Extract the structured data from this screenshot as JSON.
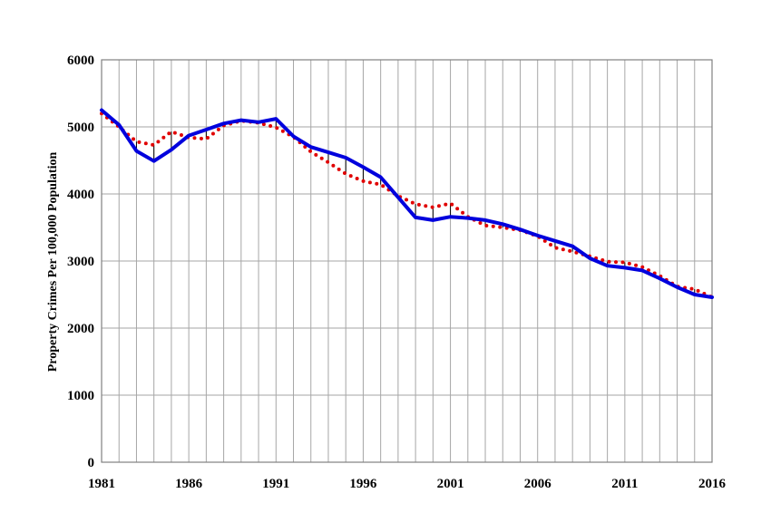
{
  "chart_data": {
    "type": "line",
    "title": "",
    "xlabel": "",
    "ylabel": "Property Crimes Per 100,000 Population",
    "xlim": [
      1981,
      2016
    ],
    "ylim": [
      0,
      6000
    ],
    "x_ticks": [
      "1981",
      "1986",
      "1991",
      "1996",
      "2001",
      "2006",
      "2011",
      "2016"
    ],
    "y_ticks": [
      "0",
      "1000",
      "2000",
      "3000",
      "4000",
      "5000",
      "6000"
    ],
    "grid": true,
    "legend": "none",
    "x": [
      1981,
      1982,
      1983,
      1984,
      1985,
      1986,
      1987,
      1988,
      1989,
      1990,
      1991,
      1992,
      1993,
      1994,
      1995,
      1996,
      1997,
      1998,
      1999,
      2000,
      2001,
      2002,
      2003,
      2004,
      2005,
      2006,
      2007,
      2008,
      2009,
      2010,
      2011,
      2012,
      2013,
      2014,
      2015,
      2016
    ],
    "series": [
      {
        "style": "solid",
        "color": "#0000dd",
        "values": [
          5250,
          5030,
          4640,
          4490,
          4660,
          4870,
          4960,
          5050,
          5100,
          5070,
          5120,
          4860,
          4700,
          4620,
          4540,
          4400,
          4250,
          3950,
          3650,
          3610,
          3660,
          3640,
          3610,
          3550,
          3470,
          3380,
          3300,
          3220,
          3040,
          2930,
          2900,
          2860,
          2740,
          2610,
          2500,
          2460
        ]
      },
      {
        "style": "dotted",
        "color": "#e00000",
        "values": [
          5200,
          5000,
          4780,
          4730,
          4930,
          4840,
          4820,
          5020,
          5090,
          5060,
          4990,
          4850,
          4630,
          4470,
          4300,
          4190,
          4140,
          3970,
          3850,
          3800,
          3860,
          3660,
          3530,
          3500,
          3460,
          3370,
          3200,
          3140,
          3070,
          2990,
          2980,
          2910,
          2780,
          2620,
          2580,
          2460
        ]
      }
    ]
  }
}
